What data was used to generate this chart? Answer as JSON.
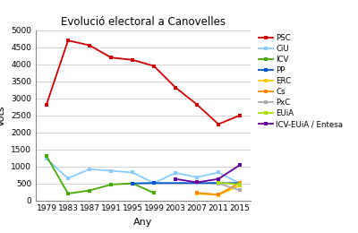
{
  "title": "Evolució electoral a Canovelles",
  "xlabel": "Any",
  "ylabel": "Vots",
  "years": [
    1979,
    1983,
    1987,
    1991,
    1995,
    1999,
    2003,
    2007,
    2011,
    2015
  ],
  "series": {
    "PSC": {
      "color": "#cc0000",
      "values": [
        2820,
        4700,
        4560,
        4200,
        4130,
        3950,
        3320,
        2820,
        2240,
        2500
      ]
    },
    "CiU": {
      "color": "#88ccff",
      "values": [
        1220,
        650,
        920,
        870,
        820,
        510,
        810,
        680,
        820,
        500
      ]
    },
    "ICV": {
      "color": "#44aa00",
      "values": [
        1300,
        200,
        290,
        465,
        500,
        220,
        null,
        null,
        null,
        null
      ]
    },
    "PP": {
      "color": "#0055cc",
      "values": [
        null,
        null,
        null,
        null,
        500,
        510,
        null,
        null,
        null,
        510
      ]
    },
    "ERC": {
      "color": "#ffcc00",
      "values": [
        null,
        null,
        null,
        null,
        null,
        null,
        null,
        200,
        160,
        435
      ]
    },
    "Cs": {
      "color": "#ff8800",
      "values": [
        null,
        null,
        null,
        null,
        null,
        null,
        null,
        220,
        170,
        520
      ]
    },
    "PxC": {
      "color": "#aaaaaa",
      "values": [
        null,
        null,
        null,
        null,
        null,
        null,
        null,
        null,
        500,
        295
      ]
    },
    "EUiA": {
      "color": "#aadd00",
      "values": [
        null,
        null,
        null,
        null,
        null,
        null,
        null,
        null,
        520,
        470
      ]
    },
    "ICV-EUiA / Entesa": {
      "color": "#660099",
      "values": [
        null,
        null,
        null,
        null,
        null,
        null,
        630,
        530,
        630,
        1040
      ]
    }
  },
  "ylim": [
    0,
    5000
  ],
  "yticks": [
    0,
    500,
    1000,
    1500,
    2000,
    2500,
    3000,
    3500,
    4000,
    4500,
    5000
  ],
  "figsize": [
    4.0,
    2.6
  ],
  "dpi": 100,
  "bg_color": "#ffffff",
  "grid_color": "#cccccc"
}
